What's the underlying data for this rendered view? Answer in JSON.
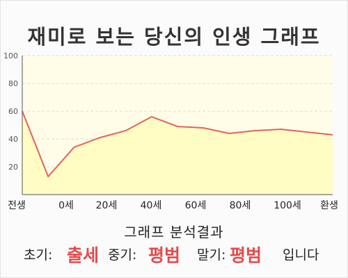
{
  "title": "재미로 보는 당신의 인생 그래프",
  "result": {
    "heading": "그래프 분석결과",
    "early_label": "초기:",
    "early_value": "출세",
    "mid_label": "중기:",
    "mid_value": "평범",
    "late_label": "말기:",
    "late_value": "평범",
    "suffix": "입니다"
  },
  "colors": {
    "line": "#e56161",
    "fill": "#fffcc4",
    "plot_bg": "#fffde8",
    "grid": "#dcdcdc",
    "axis": "#555555",
    "highlight": "#e34b4b"
  },
  "chart_data": {
    "type": "area",
    "title": "",
    "xlabel": "",
    "ylabel": "",
    "ylim": [
      0,
      100
    ],
    "yticks": [
      "20",
      "40",
      "60",
      "80",
      "100"
    ],
    "ytick_values": [
      20,
      40,
      60,
      80,
      100
    ],
    "x_tick_labels": [
      "전생",
      "0세",
      "20세",
      "40세",
      "60세",
      "80세",
      "100세",
      "환생"
    ],
    "grid": true,
    "series": [
      {
        "values": [
          60,
          13,
          34,
          41,
          46,
          56,
          49,
          48,
          44,
          46,
          47,
          45,
          43
        ]
      }
    ]
  }
}
